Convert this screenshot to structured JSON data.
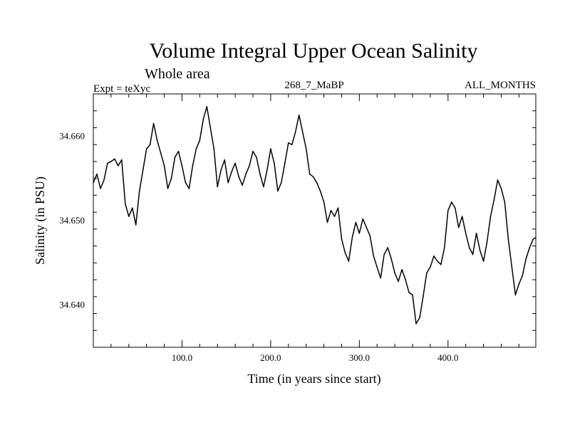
{
  "chart_data": {
    "type": "line",
    "title": "Volume Integral Upper Ocean Salinity",
    "subtitle": "Whole area",
    "info_left": "Expt = teXyc",
    "info_center": "268_7_MaBP",
    "info_right": "ALL_MONTHS",
    "xlabel": "Time (in years since start)",
    "ylabel": "Salinity (in PSU)",
    "xlim": [
      0,
      499
    ],
    "ylim": [
      34.635,
      34.665
    ],
    "x_ticks": [
      100,
      200,
      300,
      400
    ],
    "x_tick_labels": [
      "100.0",
      "200.0",
      "300.0",
      "400.0"
    ],
    "y_ticks": [
      34.64,
      34.65,
      34.66
    ],
    "y_tick_labels": [
      "34.640",
      "34.650",
      "34.660"
    ],
    "grid": false,
    "series": [
      {
        "color": "#000000",
        "x": [
          0,
          4,
          8,
          12,
          16,
          20,
          24,
          28,
          32,
          36,
          40,
          44,
          48,
          52,
          56,
          60,
          64,
          68,
          72,
          76,
          80,
          84,
          88,
          92,
          96,
          100,
          104,
          108,
          112,
          116,
          120,
          124,
          128,
          132,
          136,
          140,
          144,
          148,
          152,
          156,
          160,
          164,
          168,
          172,
          176,
          180,
          184,
          188,
          192,
          196,
          200,
          204,
          208,
          212,
          216,
          220,
          224,
          228,
          232,
          236,
          240,
          244,
          248,
          252,
          256,
          260,
          264,
          268,
          272,
          276,
          280,
          284,
          288,
          292,
          296,
          300,
          304,
          308,
          312,
          316,
          320,
          324,
          328,
          332,
          336,
          340,
          344,
          348,
          352,
          356,
          360,
          364,
          368,
          372,
          376,
          380,
          384,
          388,
          392,
          396,
          400,
          404,
          408,
          412,
          416,
          420,
          424,
          428,
          432,
          436,
          440,
          444,
          448,
          452,
          456,
          460,
          464,
          468,
          472,
          476,
          480,
          484,
          488,
          492,
          496,
          499
        ],
        "y": [
          34.6545,
          34.6555,
          34.6538,
          34.6548,
          34.6568,
          34.657,
          34.6573,
          34.6565,
          34.6572,
          34.652,
          34.6505,
          34.6515,
          34.6495,
          34.6535,
          34.656,
          34.6585,
          34.659,
          34.6615,
          34.6595,
          34.658,
          34.6565,
          34.6538,
          34.655,
          34.6575,
          34.6582,
          34.6565,
          34.6545,
          34.6538,
          34.6565,
          34.6585,
          34.6595,
          34.662,
          34.6635,
          34.661,
          34.6585,
          34.654,
          34.656,
          34.6572,
          34.6545,
          34.6558,
          34.6568,
          34.6552,
          34.6542,
          34.6555,
          34.6565,
          34.6582,
          34.6575,
          34.6555,
          34.654,
          34.656,
          34.6585,
          34.6568,
          34.6535,
          34.6545,
          34.6568,
          34.6592,
          34.659,
          34.6605,
          34.6625,
          34.6605,
          34.6585,
          34.6555,
          34.6552,
          34.6545,
          34.6535,
          34.6522,
          34.6498,
          34.6512,
          34.6505,
          34.6515,
          34.6478,
          34.6462,
          34.6452,
          34.648,
          34.6498,
          34.6485,
          34.6502,
          34.6492,
          34.6482,
          34.6458,
          34.6445,
          34.6432,
          34.646,
          34.6468,
          34.6455,
          34.6438,
          34.6428,
          34.6442,
          34.643,
          34.6415,
          34.6412,
          34.6378,
          34.6385,
          34.641,
          34.6438,
          34.6445,
          34.6458,
          34.6452,
          34.6448,
          34.6468,
          34.6512,
          34.6522,
          34.6515,
          34.6492,
          34.6505,
          34.6485,
          34.6468,
          34.646,
          34.6485,
          34.6465,
          34.6452,
          34.6475,
          34.6505,
          34.6525,
          34.6548,
          34.6538,
          34.6522,
          34.6478,
          34.6445,
          34.6412,
          34.6425,
          34.6435,
          34.6455,
          34.6468,
          34.6478,
          34.648
        ]
      }
    ]
  }
}
